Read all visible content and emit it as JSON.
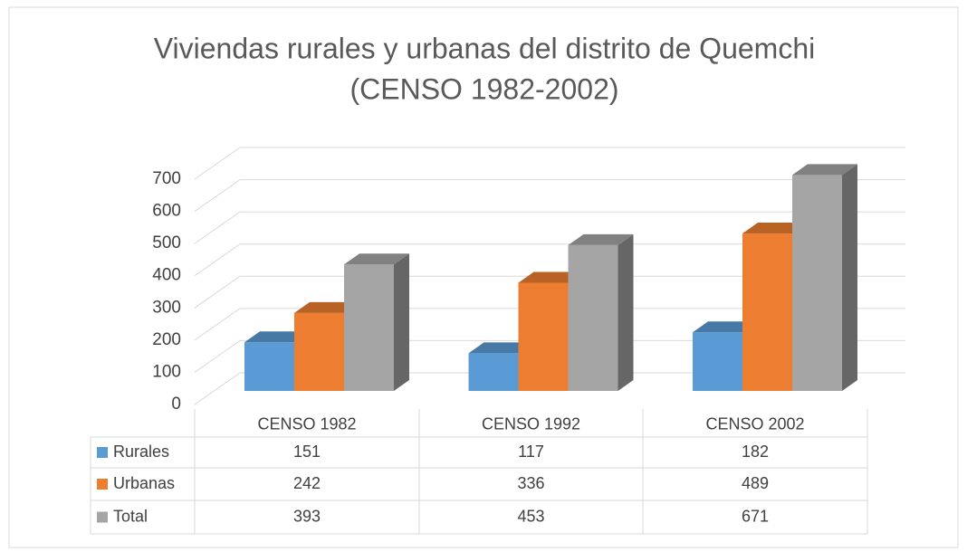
{
  "chart_data": {
    "type": "bar3d",
    "title": "Viviendas rurales y urbanas del distrito de Quemchi",
    "subtitle": "(CENSO 1982-2002)",
    "categories": [
      "CENSO 1982",
      "CENSO 1992",
      "CENSO 2002"
    ],
    "series": [
      {
        "name": "Rurales",
        "color": "#5b9bd5",
        "values": [
          151,
          117,
          182
        ]
      },
      {
        "name": "Urbanas",
        "color": "#ed7d31",
        "values": [
          242,
          336,
          489
        ]
      },
      {
        "name": "Total",
        "color": "#a5a5a5",
        "values": [
          393,
          453,
          671
        ]
      }
    ],
    "ylim": [
      0,
      700
    ],
    "yticks": [
      0,
      100,
      200,
      300,
      400,
      500,
      600,
      700
    ],
    "grid": true
  }
}
